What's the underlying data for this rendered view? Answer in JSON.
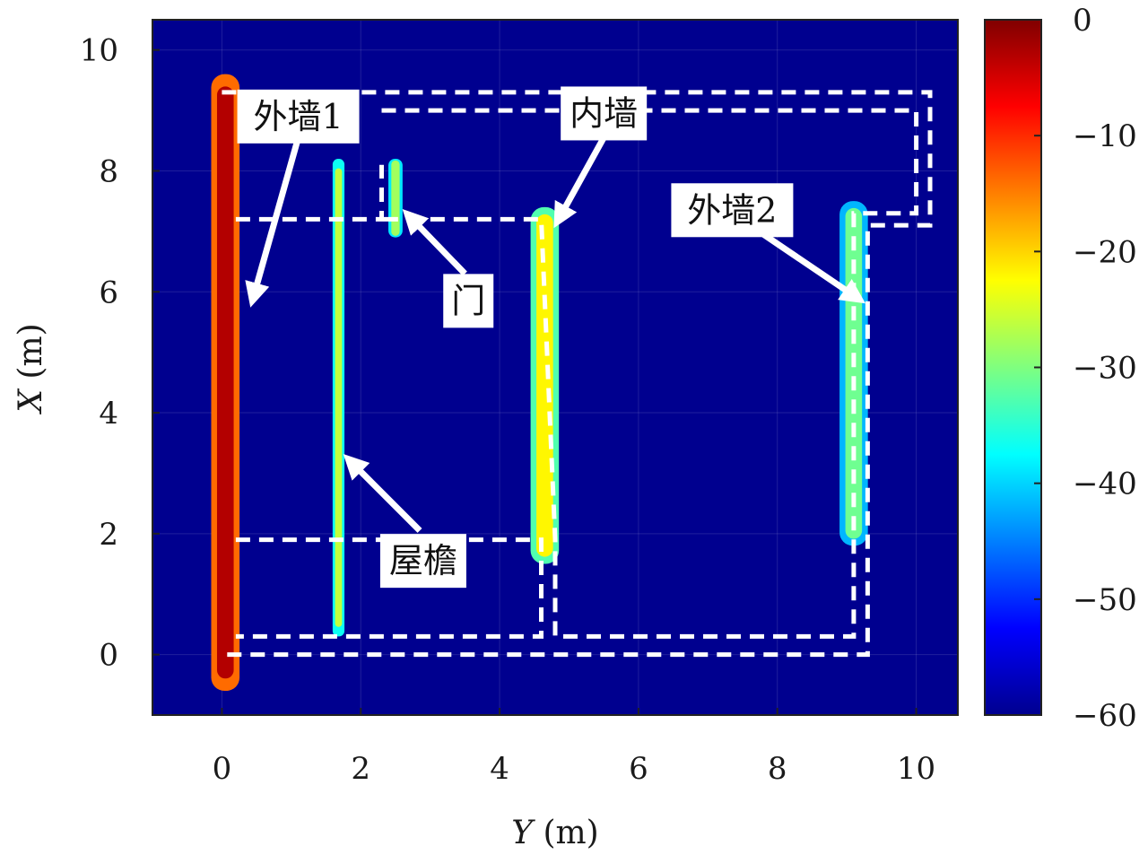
{
  "chart_data": {
    "type": "heatmap",
    "title": "",
    "xlabel_var": "Y",
    "xlabel_unit": "(m)",
    "ylabel_var": "X",
    "ylabel_unit": "(m)",
    "xlim": [
      -1,
      10.6
    ],
    "ylim": [
      -1,
      10.5
    ],
    "x_ticks": [
      "0",
      "2",
      "4",
      "6",
      "8",
      "10"
    ],
    "x_tick_values": [
      0,
      2,
      4,
      6,
      8,
      10
    ],
    "y_ticks": [
      "0",
      "2",
      "4",
      "6",
      "8",
      "10"
    ],
    "y_tick_values": [
      0,
      2,
      4,
      6,
      8,
      10
    ],
    "colorbar": {
      "min": -60,
      "max": 0,
      "ticks": [
        "0",
        "−10",
        "−20",
        "−30",
        "−40",
        "−50",
        "−60"
      ],
      "tick_values": [
        0,
        -10,
        -20,
        -30,
        -40,
        -50,
        -60
      ],
      "colormap": "jet"
    },
    "background_color": "#00008f",
    "strips": [
      {
        "name": "outer-wall-1",
        "y_center": 0.05,
        "half_width": 0.12,
        "x_from": -0.6,
        "x_to": 9.6,
        "level": -3
      },
      {
        "name": "eave-strip",
        "y_center": 1.68,
        "half_width": 0.05,
        "x_from": 0.3,
        "x_to": 8.2,
        "level": -26
      },
      {
        "name": "door-strip",
        "y_center": 2.5,
        "half_width": 0.06,
        "x_from": 6.9,
        "x_to": 8.2,
        "level": -28
      },
      {
        "name": "inner-wall-strip",
        "y_center": 4.65,
        "half_width": 0.12,
        "x_from": 1.5,
        "x_to": 7.4,
        "level": -22
      },
      {
        "name": "outer-wall-2-strip",
        "y_center": 9.1,
        "half_width": 0.12,
        "x_from": 1.8,
        "x_to": 7.5,
        "level": -31
      }
    ],
    "dashed_regions": [
      {
        "name": "outer-building-region",
        "points": [
          [
            0,
            9.3
          ],
          [
            10.2,
            9.3
          ],
          [
            10.2,
            7.1
          ],
          [
            9.3,
            7.1
          ],
          [
            9.3,
            0
          ],
          [
            0,
            0
          ]
        ]
      },
      {
        "name": "inner-room-region",
        "points": [
          [
            2.3,
            9.0
          ],
          [
            10.0,
            9.0
          ],
          [
            10.0,
            7.3
          ],
          [
            9.1,
            7.3
          ],
          [
            9.1,
            0.3
          ],
          [
            4.8,
            0.3
          ],
          [
            4.8,
            1.9
          ],
          [
            4.6,
            7.2
          ],
          [
            2.3,
            7.2
          ]
        ]
      },
      {
        "name": "annex-region",
        "points": [
          [
            0.2,
            7.2
          ],
          [
            2.3,
            7.2
          ],
          [
            2.3,
            8.1
          ]
        ]
      },
      {
        "name": "eave-region",
        "points": [
          [
            0.2,
            1.9
          ],
          [
            4.6,
            1.9
          ],
          [
            4.6,
            0.3
          ],
          [
            0.2,
            0.3
          ]
        ]
      }
    ],
    "annotations": [
      {
        "name": "outer-wall-1-label",
        "text": "外墙1",
        "label_at": [
          1.1,
          8.9
        ],
        "arrow_from": [
          1.1,
          8.55
        ],
        "arrow_to": [
          0.45,
          5.9
        ]
      },
      {
        "name": "inner-wall-label",
        "text": "内墙",
        "label_at": [
          5.5,
          8.95
        ],
        "arrow_from": [
          5.5,
          8.55
        ],
        "arrow_to": [
          4.85,
          7.2
        ]
      },
      {
        "name": "outer-wall-2-label",
        "text": "外墙2",
        "label_at": [
          7.35,
          7.35
        ],
        "arrow_from": [
          7.8,
          6.95
        ],
        "arrow_to": [
          9.15,
          5.9
        ]
      },
      {
        "name": "door-label",
        "text": "门",
        "label_at": [
          3.55,
          5.85
        ],
        "arrow_from": [
          3.5,
          6.3
        ],
        "arrow_to": [
          2.7,
          7.25
        ]
      },
      {
        "name": "eave-label",
        "text": "屋檐",
        "label_at": [
          2.9,
          1.55
        ],
        "arrow_from": [
          2.85,
          2.05
        ],
        "arrow_to": [
          1.85,
          3.2
        ]
      }
    ]
  }
}
